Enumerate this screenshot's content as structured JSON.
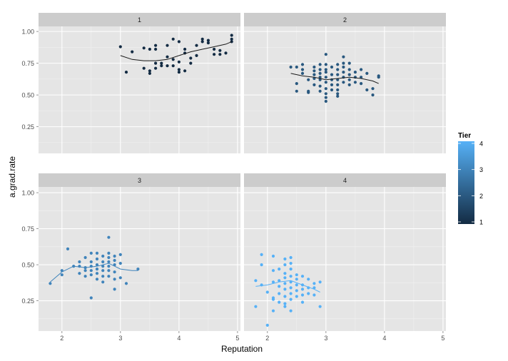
{
  "chart_data": {
    "type": "scatter",
    "xlabel": "Reputation",
    "ylabel": "a.grad.rate",
    "xlim": [
      1.6,
      5.05
    ],
    "ylim": [
      0.04,
      1.04
    ],
    "x_ticks": [
      "2",
      "3",
      "4",
      "5"
    ],
    "y_ticks": [
      "0.25",
      "0.50",
      "0.75",
      "1.00"
    ],
    "grid": true,
    "smoother": "loess",
    "facet_by": "Tier",
    "panels": [
      {
        "label": "1",
        "tier": 1,
        "points": [
          [
            3.0,
            0.88
          ],
          [
            3.1,
            0.68
          ],
          [
            3.2,
            0.84
          ],
          [
            3.4,
            0.87
          ],
          [
            3.4,
            0.71
          ],
          [
            3.5,
            0.86
          ],
          [
            3.5,
            0.67
          ],
          [
            3.5,
            0.69
          ],
          [
            3.6,
            0.89
          ],
          [
            3.6,
            0.75
          ],
          [
            3.6,
            0.71
          ],
          [
            3.6,
            0.86
          ],
          [
            3.7,
            0.73
          ],
          [
            3.7,
            0.75
          ],
          [
            3.8,
            0.73
          ],
          [
            3.8,
            0.8
          ],
          [
            3.8,
            0.89
          ],
          [
            3.9,
            0.94
          ],
          [
            3.9,
            0.78
          ],
          [
            3.9,
            0.73
          ],
          [
            4.0,
            0.92
          ],
          [
            4.0,
            0.7
          ],
          [
            4.0,
            0.68
          ],
          [
            4.0,
            0.76
          ],
          [
            4.1,
            0.86
          ],
          [
            4.1,
            0.83
          ],
          [
            4.1,
            0.69
          ],
          [
            4.2,
            0.79
          ],
          [
            4.2,
            0.75
          ],
          [
            4.3,
            0.89
          ],
          [
            4.3,
            0.81
          ],
          [
            4.4,
            0.94
          ],
          [
            4.4,
            0.92
          ],
          [
            4.5,
            0.91
          ],
          [
            4.5,
            0.93
          ],
          [
            4.6,
            0.86
          ],
          [
            4.6,
            0.82
          ],
          [
            4.7,
            0.85
          ],
          [
            4.7,
            0.82
          ],
          [
            4.8,
            0.83
          ],
          [
            4.9,
            0.97
          ],
          [
            4.9,
            0.94
          ],
          [
            4.9,
            0.92
          ]
        ],
        "fit": [
          [
            3.0,
            0.81
          ],
          [
            3.2,
            0.78
          ],
          [
            3.4,
            0.77
          ],
          [
            3.6,
            0.77
          ],
          [
            3.8,
            0.78
          ],
          [
            4.0,
            0.81
          ],
          [
            4.2,
            0.84
          ],
          [
            4.4,
            0.86
          ],
          [
            4.6,
            0.88
          ],
          [
            4.8,
            0.9
          ],
          [
            4.9,
            0.92
          ]
        ]
      },
      {
        "label": "2",
        "tier": 2,
        "points": [
          [
            2.4,
            0.72
          ],
          [
            2.5,
            0.72
          ],
          [
            2.5,
            0.59
          ],
          [
            2.5,
            0.53
          ],
          [
            2.6,
            0.74
          ],
          [
            2.6,
            0.7
          ],
          [
            2.6,
            0.67
          ],
          [
            2.7,
            0.62
          ],
          [
            2.7,
            0.53
          ],
          [
            2.7,
            0.52
          ],
          [
            2.8,
            0.72
          ],
          [
            2.8,
            0.69
          ],
          [
            2.8,
            0.66
          ],
          [
            2.8,
            0.63
          ],
          [
            2.8,
            0.58
          ],
          [
            2.9,
            0.74
          ],
          [
            2.9,
            0.7
          ],
          [
            2.9,
            0.67
          ],
          [
            2.9,
            0.64
          ],
          [
            2.9,
            0.62
          ],
          [
            2.9,
            0.57
          ],
          [
            2.9,
            0.53
          ],
          [
            3.0,
            0.82
          ],
          [
            3.0,
            0.74
          ],
          [
            3.0,
            0.7
          ],
          [
            3.0,
            0.68
          ],
          [
            3.0,
            0.64
          ],
          [
            3.0,
            0.6
          ],
          [
            3.0,
            0.55
          ],
          [
            3.0,
            0.51
          ],
          [
            3.0,
            0.48
          ],
          [
            3.0,
            0.45
          ],
          [
            3.1,
            0.72
          ],
          [
            3.1,
            0.66
          ],
          [
            3.1,
            0.62
          ],
          [
            3.1,
            0.58
          ],
          [
            3.1,
            0.54
          ],
          [
            3.2,
            0.74
          ],
          [
            3.2,
            0.7
          ],
          [
            3.2,
            0.66
          ],
          [
            3.2,
            0.62
          ],
          [
            3.2,
            0.58
          ],
          [
            3.2,
            0.54
          ],
          [
            3.2,
            0.51
          ],
          [
            3.2,
            0.49
          ],
          [
            3.3,
            0.8
          ],
          [
            3.3,
            0.75
          ],
          [
            3.3,
            0.72
          ],
          [
            3.3,
            0.68
          ],
          [
            3.3,
            0.64
          ],
          [
            3.3,
            0.6
          ],
          [
            3.4,
            0.75
          ],
          [
            3.4,
            0.7
          ],
          [
            3.4,
            0.66
          ],
          [
            3.4,
            0.62
          ],
          [
            3.4,
            0.58
          ],
          [
            3.5,
            0.68
          ],
          [
            3.5,
            0.64
          ],
          [
            3.5,
            0.6
          ],
          [
            3.6,
            0.7
          ],
          [
            3.6,
            0.64
          ],
          [
            3.6,
            0.59
          ],
          [
            3.7,
            0.67
          ],
          [
            3.7,
            0.54
          ],
          [
            3.8,
            0.55
          ],
          [
            3.8,
            0.5
          ],
          [
            3.9,
            0.65
          ],
          [
            3.9,
            0.64
          ]
        ],
        "fit": [
          [
            2.4,
            0.67
          ],
          [
            2.6,
            0.65
          ],
          [
            2.8,
            0.64
          ],
          [
            3.0,
            0.62
          ],
          [
            3.2,
            0.63
          ],
          [
            3.4,
            0.64
          ],
          [
            3.6,
            0.63
          ],
          [
            3.8,
            0.61
          ],
          [
            3.9,
            0.59
          ]
        ]
      },
      {
        "label": "3",
        "tier": 3,
        "points": [
          [
            1.8,
            0.37
          ],
          [
            2.0,
            0.43
          ],
          [
            2.0,
            0.46
          ],
          [
            2.1,
            0.61
          ],
          [
            2.2,
            0.49
          ],
          [
            2.3,
            0.52
          ],
          [
            2.3,
            0.49
          ],
          [
            2.3,
            0.44
          ],
          [
            2.4,
            0.55
          ],
          [
            2.4,
            0.48
          ],
          [
            2.4,
            0.46
          ],
          [
            2.4,
            0.42
          ],
          [
            2.5,
            0.58
          ],
          [
            2.5,
            0.52
          ],
          [
            2.5,
            0.49
          ],
          [
            2.5,
            0.46
          ],
          [
            2.5,
            0.43
          ],
          [
            2.5,
            0.27
          ],
          [
            2.6,
            0.58
          ],
          [
            2.6,
            0.54
          ],
          [
            2.6,
            0.5
          ],
          [
            2.6,
            0.47
          ],
          [
            2.6,
            0.44
          ],
          [
            2.6,
            0.4
          ],
          [
            2.7,
            0.56
          ],
          [
            2.7,
            0.52
          ],
          [
            2.7,
            0.49
          ],
          [
            2.7,
            0.46
          ],
          [
            2.7,
            0.42
          ],
          [
            2.7,
            0.38
          ],
          [
            2.8,
            0.69
          ],
          [
            2.8,
            0.58
          ],
          [
            2.8,
            0.55
          ],
          [
            2.8,
            0.52
          ],
          [
            2.8,
            0.49
          ],
          [
            2.8,
            0.46
          ],
          [
            2.8,
            0.42
          ],
          [
            2.9,
            0.56
          ],
          [
            2.9,
            0.53
          ],
          [
            2.9,
            0.5
          ],
          [
            2.9,
            0.45
          ],
          [
            2.9,
            0.4
          ],
          [
            2.9,
            0.33
          ],
          [
            3.0,
            0.57
          ],
          [
            3.0,
            0.51
          ],
          [
            3.0,
            0.41
          ],
          [
            3.1,
            0.37
          ],
          [
            3.3,
            0.47
          ]
        ],
        "fit": [
          [
            1.8,
            0.38
          ],
          [
            2.0,
            0.45
          ],
          [
            2.2,
            0.49
          ],
          [
            2.4,
            0.48
          ],
          [
            2.6,
            0.49
          ],
          [
            2.8,
            0.51
          ],
          [
            3.0,
            0.47
          ],
          [
            3.2,
            0.46
          ],
          [
            3.3,
            0.46
          ]
        ]
      },
      {
        "label": "4",
        "tier": 4,
        "points": [
          [
            1.8,
            0.39
          ],
          [
            1.8,
            0.21
          ],
          [
            1.9,
            0.36
          ],
          [
            1.9,
            0.57
          ],
          [
            1.9,
            0.5
          ],
          [
            2.0,
            0.31
          ],
          [
            2.0,
            0.08
          ],
          [
            2.1,
            0.56
          ],
          [
            2.1,
            0.46
          ],
          [
            2.1,
            0.38
          ],
          [
            2.1,
            0.27
          ],
          [
            2.1,
            0.18
          ],
          [
            2.1,
            0.26
          ],
          [
            2.2,
            0.39
          ],
          [
            2.2,
            0.35
          ],
          [
            2.2,
            0.3
          ],
          [
            2.2,
            0.24
          ],
          [
            2.2,
            0.47
          ],
          [
            2.3,
            0.54
          ],
          [
            2.3,
            0.5
          ],
          [
            2.3,
            0.44
          ],
          [
            2.3,
            0.41
          ],
          [
            2.3,
            0.37
          ],
          [
            2.3,
            0.33
          ],
          [
            2.3,
            0.28
          ],
          [
            2.3,
            0.23
          ],
          [
            2.3,
            0.21
          ],
          [
            2.4,
            0.55
          ],
          [
            2.4,
            0.51
          ],
          [
            2.4,
            0.47
          ],
          [
            2.4,
            0.42
          ],
          [
            2.4,
            0.38
          ],
          [
            2.4,
            0.34
          ],
          [
            2.4,
            0.3
          ],
          [
            2.4,
            0.26
          ],
          [
            2.4,
            0.18
          ],
          [
            2.5,
            0.43
          ],
          [
            2.5,
            0.4
          ],
          [
            2.5,
            0.36
          ],
          [
            2.5,
            0.32
          ],
          [
            2.5,
            0.28
          ],
          [
            2.6,
            0.42
          ],
          [
            2.6,
            0.36
          ],
          [
            2.6,
            0.33
          ],
          [
            2.6,
            0.29
          ],
          [
            2.6,
            0.24
          ],
          [
            2.7,
            0.4
          ],
          [
            2.7,
            0.34
          ],
          [
            2.7,
            0.3
          ],
          [
            2.8,
            0.37
          ],
          [
            2.8,
            0.34
          ],
          [
            2.8,
            0.29
          ],
          [
            2.9,
            0.38
          ],
          [
            2.9,
            0.21
          ]
        ],
        "fit": [
          [
            1.8,
            0.35
          ],
          [
            2.0,
            0.36
          ],
          [
            2.2,
            0.38
          ],
          [
            2.4,
            0.39
          ],
          [
            2.6,
            0.36
          ],
          [
            2.8,
            0.33
          ],
          [
            2.9,
            0.31
          ]
        ]
      }
    ],
    "colorbar": {
      "title": "Tier",
      "ticks": [
        "1",
        "2",
        "3",
        "4"
      ],
      "range": [
        1,
        4
      ],
      "low_color": "#132B43",
      "high_color": "#56B1F7"
    },
    "colors": {
      "panel_background": "#E5E5E5",
      "strip_background": "#CCCCCC",
      "grid_major": "#FFFFFF",
      "grid_minor": "#F2F2F2",
      "axis_text": "#4D4D4D",
      "line_color": "#1A1A1A"
    }
  }
}
